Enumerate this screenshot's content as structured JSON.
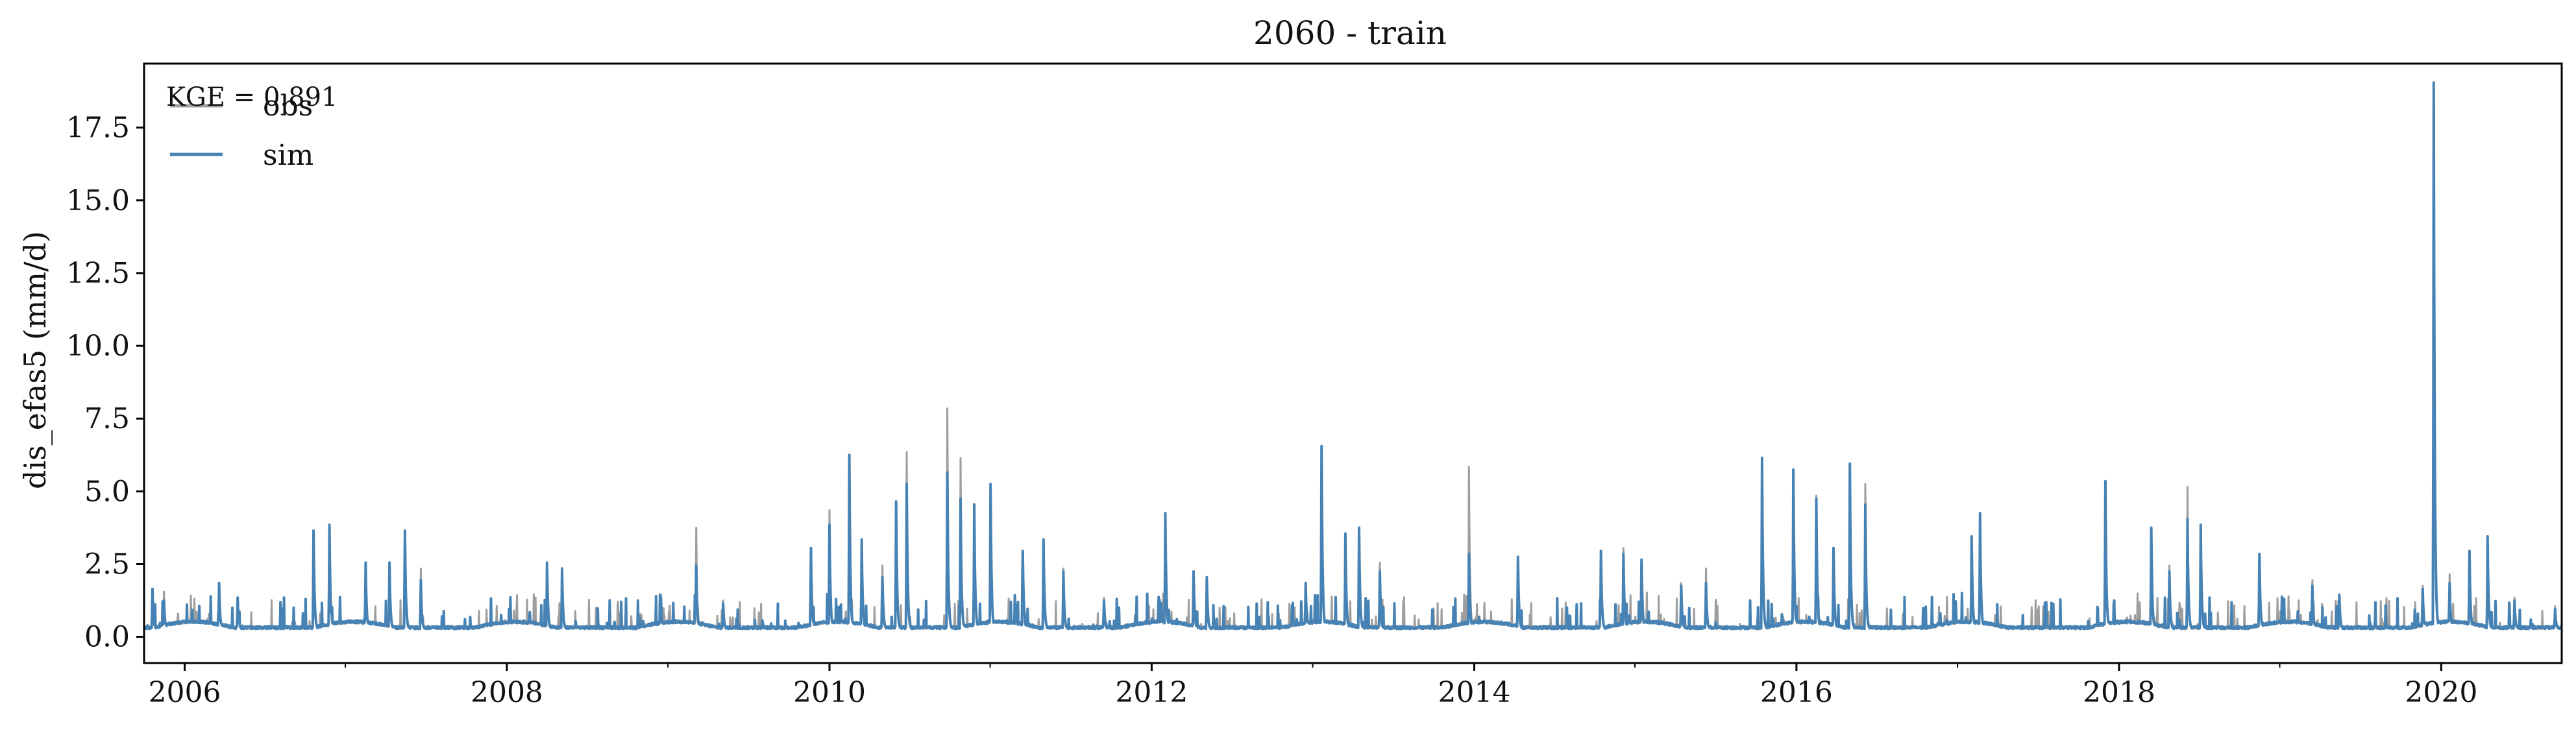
{
  "chart_data": {
    "type": "line",
    "title": "2060 - train",
    "xlabel": "",
    "ylabel": "dis_efas5 (mm/d)",
    "x_range": [
      "2005-10-01",
      "2020-09-30"
    ],
    "ylim": [
      -0.9,
      19.7
    ],
    "x_ticks": [
      "2006",
      "2008",
      "2010",
      "2012",
      "2014",
      "2016",
      "2018",
      "2020"
    ],
    "y_ticks": [
      "0.0",
      "2.5",
      "5.0",
      "7.5",
      "10.0",
      "12.5",
      "15.0",
      "17.5"
    ],
    "grid": false,
    "legend": {
      "location": "upper left",
      "entries": [
        "obs",
        "sim"
      ]
    },
    "annotation": "KGE = 0.891",
    "colors": {
      "obs": "#9e9e9e",
      "sim": "#4682b4"
    },
    "series": [
      {
        "name": "obs",
        "peaks": [
          [
            "2005-10-20",
            1.0
          ],
          [
            "2005-11-15",
            1.3
          ],
          [
            "2006-03-20",
            1.6
          ],
          [
            "2006-05-01",
            1.0
          ],
          [
            "2006-10-20",
            3.3
          ],
          [
            "2006-11-25",
            3.5
          ],
          [
            "2007-02-15",
            2.2
          ],
          [
            "2007-04-10",
            2.2
          ],
          [
            "2007-05-15",
            3.3
          ],
          [
            "2007-06-20",
            2.1
          ],
          [
            "2008-04-01",
            2.3
          ],
          [
            "2008-05-05",
            2.0
          ],
          [
            "2008-12-15",
            1.2
          ],
          [
            "2009-03-05",
            3.5
          ],
          [
            "2009-05-05",
            1.0
          ],
          [
            "2009-11-20",
            2.8
          ],
          [
            "2010-01-01",
            4.1
          ],
          [
            "2010-02-15",
            5.8
          ],
          [
            "2010-03-15",
            3.0
          ],
          [
            "2010-05-01",
            2.2
          ],
          [
            "2010-06-01",
            4.0
          ],
          [
            "2010-06-25",
            6.1
          ],
          [
            "2010-09-25",
            7.6
          ],
          [
            "2010-10-25",
            5.9
          ],
          [
            "2010-11-25",
            4.3
          ],
          [
            "2011-01-01",
            4.8
          ],
          [
            "2011-03-15",
            2.6
          ],
          [
            "2011-05-01",
            3.1
          ],
          [
            "2011-06-15",
            2.1
          ],
          [
            "2011-09-15",
            1.1
          ],
          [
            "2012-02-01",
            3.9
          ],
          [
            "2012-04-05",
            1.9
          ],
          [
            "2012-05-05",
            1.7
          ],
          [
            "2012-12-15",
            1.5
          ],
          [
            "2013-01-20",
            6.1
          ],
          [
            "2013-03-15",
            3.2
          ],
          [
            "2013-04-15",
            3.5
          ],
          [
            "2013-06-01",
            2.3
          ],
          [
            "2013-12-20",
            5.6
          ],
          [
            "2014-04-10",
            2.4
          ],
          [
            "2014-10-15",
            2.5
          ],
          [
            "2014-12-05",
            2.8
          ],
          [
            "2015-01-15",
            2.4
          ],
          [
            "2015-04-15",
            1.6
          ],
          [
            "2015-06-10",
            2.1
          ],
          [
            "2015-10-15",
            5.8
          ],
          [
            "2015-12-25",
            5.4
          ],
          [
            "2016-02-15",
            4.6
          ],
          [
            "2016-03-25",
            2.8
          ],
          [
            "2016-05-01",
            5.6
          ],
          [
            "2016-06-05",
            5.0
          ],
          [
            "2017-02-01",
            3.1
          ],
          [
            "2017-02-20",
            3.8
          ],
          [
            "2017-12-01",
            5.0
          ],
          [
            "2018-03-15",
            3.4
          ],
          [
            "2018-04-25",
            2.2
          ],
          [
            "2018-06-05",
            4.9
          ],
          [
            "2018-07-05",
            3.6
          ],
          [
            "2018-11-15",
            2.4
          ],
          [
            "2019-03-15",
            1.7
          ],
          [
            "2019-05-15",
            1.1
          ],
          [
            "2019-11-20",
            1.5
          ],
          [
            "2019-12-15",
            13.5
          ],
          [
            "2020-01-20",
            1.9
          ],
          [
            "2020-03-05",
            2.6
          ],
          [
            "2020-04-15",
            3.1
          ],
          [
            "2020-06-15",
            1.1
          ],
          [
            "2020-09-15",
            0.8
          ]
        ]
      },
      {
        "name": "sim",
        "peaks": [
          [
            "2005-10-20",
            1.4
          ],
          [
            "2005-11-15",
            1.0
          ],
          [
            "2006-03-20",
            1.6
          ],
          [
            "2006-05-01",
            1.1
          ],
          [
            "2006-10-20",
            3.4
          ],
          [
            "2006-11-25",
            3.6
          ],
          [
            "2007-02-15",
            2.3
          ],
          [
            "2007-04-10",
            2.3
          ],
          [
            "2007-05-15",
            3.4
          ],
          [
            "2007-06-20",
            1.7
          ],
          [
            "2008-04-01",
            2.3
          ],
          [
            "2008-05-05",
            2.1
          ],
          [
            "2008-12-15",
            1.1
          ],
          [
            "2009-03-05",
            2.2
          ],
          [
            "2009-05-05",
            0.9
          ],
          [
            "2009-11-20",
            2.8
          ],
          [
            "2010-01-01",
            3.6
          ],
          [
            "2010-02-15",
            6.0
          ],
          [
            "2010-03-15",
            3.1
          ],
          [
            "2010-05-01",
            1.8
          ],
          [
            "2010-06-01",
            4.4
          ],
          [
            "2010-06-25",
            5.0
          ],
          [
            "2010-09-25",
            5.4
          ],
          [
            "2010-10-25",
            4.5
          ],
          [
            "2010-11-25",
            4.3
          ],
          [
            "2011-01-01",
            5.0
          ],
          [
            "2011-03-15",
            2.7
          ],
          [
            "2011-05-01",
            3.1
          ],
          [
            "2011-06-15",
            2.0
          ],
          [
            "2011-09-15",
            1.0
          ],
          [
            "2012-02-01",
            4.0
          ],
          [
            "2012-04-05",
            2.0
          ],
          [
            "2012-05-05",
            1.8
          ],
          [
            "2012-12-15",
            1.6
          ],
          [
            "2013-01-20",
            6.3
          ],
          [
            "2013-03-15",
            3.3
          ],
          [
            "2013-04-15",
            3.5
          ],
          [
            "2013-06-01",
            2.0
          ],
          [
            "2013-12-20",
            2.6
          ],
          [
            "2014-04-10",
            2.5
          ],
          [
            "2014-10-15",
            2.7
          ],
          [
            "2014-12-05",
            2.6
          ],
          [
            "2015-01-15",
            2.4
          ],
          [
            "2015-04-15",
            1.5
          ],
          [
            "2015-06-10",
            1.6
          ],
          [
            "2015-10-15",
            5.9
          ],
          [
            "2015-12-25",
            5.5
          ],
          [
            "2016-02-15",
            4.5
          ],
          [
            "2016-03-25",
            2.8
          ],
          [
            "2016-05-01",
            5.7
          ],
          [
            "2016-06-05",
            4.3
          ],
          [
            "2017-02-01",
            3.2
          ],
          [
            "2017-02-20",
            4.0
          ],
          [
            "2017-12-01",
            5.1
          ],
          [
            "2018-03-15",
            3.5
          ],
          [
            "2018-04-25",
            2.0
          ],
          [
            "2018-06-05",
            3.8
          ],
          [
            "2018-07-05",
            3.6
          ],
          [
            "2018-11-15",
            2.6
          ],
          [
            "2019-03-15",
            1.5
          ],
          [
            "2019-05-15",
            1.2
          ],
          [
            "2019-11-20",
            1.4
          ],
          [
            "2019-12-15",
            18.8
          ],
          [
            "2020-01-20",
            1.6
          ],
          [
            "2020-03-05",
            2.7
          ],
          [
            "2020-04-15",
            3.2
          ],
          [
            "2020-06-15",
            1.0
          ],
          [
            "2020-09-15",
            0.7
          ]
        ]
      }
    ]
  }
}
